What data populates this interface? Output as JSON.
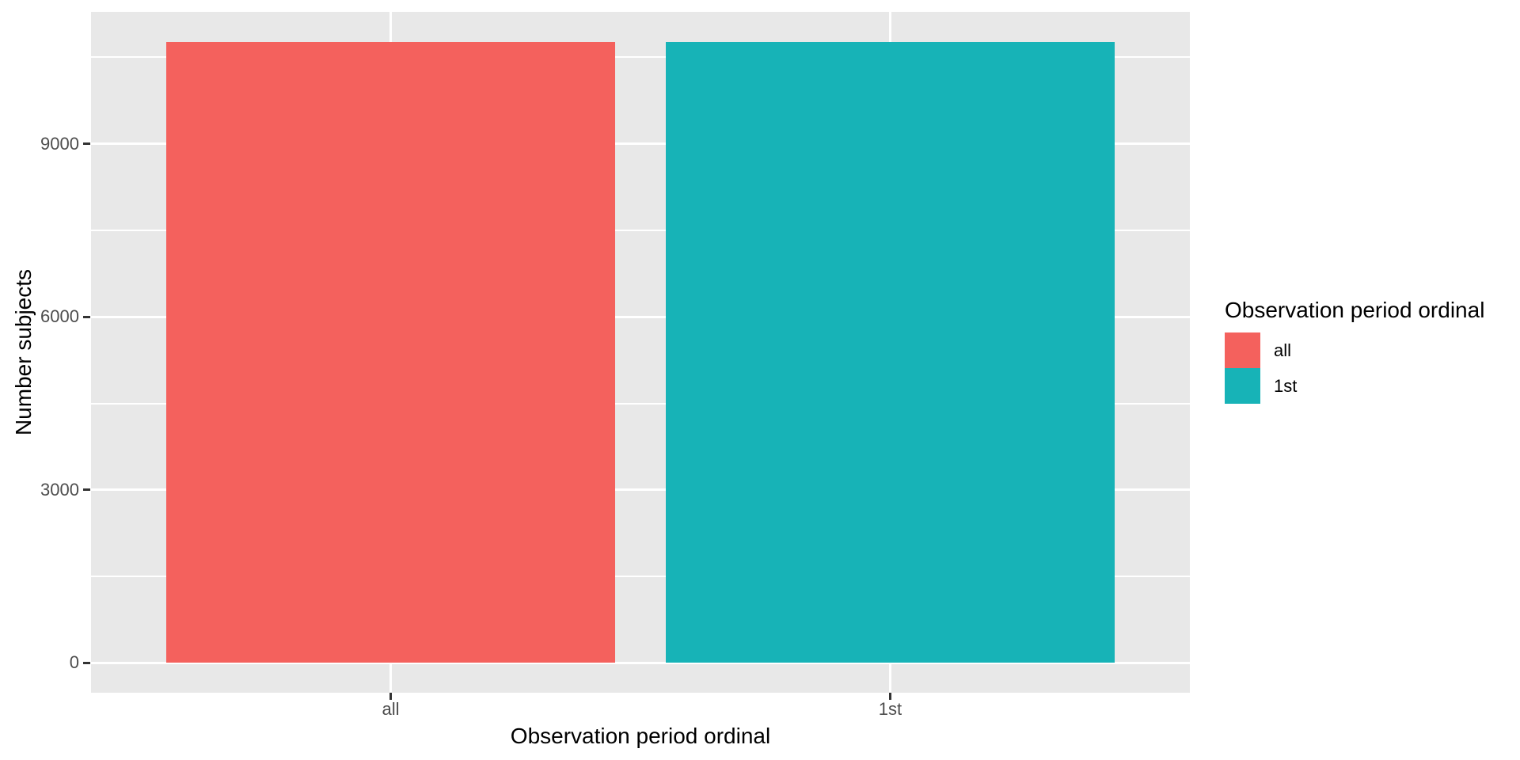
{
  "chart_data": {
    "type": "bar",
    "title": "",
    "xlabel": "Observation period ordinal",
    "ylabel": "Number subjects",
    "categories": [
      "all",
      "1st"
    ],
    "values": [
      10770,
      10770
    ],
    "bar_colors": [
      "#F4615D",
      "#17B3B7"
    ],
    "y_ticks": [
      0,
      3000,
      6000,
      9000
    ],
    "y_minor_gridlines": [
      1500,
      4500,
      7500,
      10500
    ],
    "ylim": [
      -515,
      11285
    ],
    "grid": "on",
    "panel_background": "#E8E8E8",
    "gridline_color": "#FFFFFF",
    "legend": {
      "title": "Observation period ordinal",
      "position": "right",
      "entries": [
        {
          "label": "all",
          "color": "#F4615D"
        },
        {
          "label": "1st",
          "color": "#17B3B7"
        }
      ]
    }
  }
}
